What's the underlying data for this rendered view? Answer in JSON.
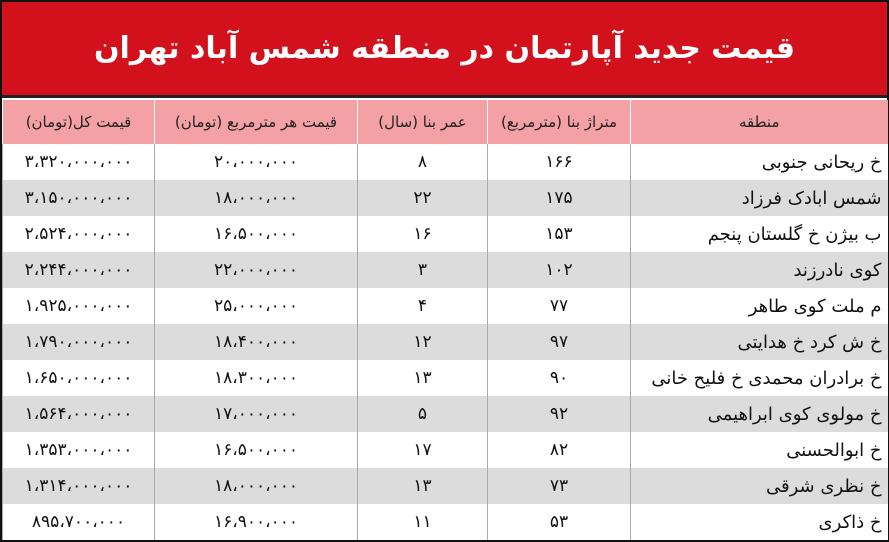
{
  "title": "قیمت جدید آپارتمان در منطقه شمس آباد تهران",
  "colors": {
    "title_bg": "#d2111c",
    "header_bg": "#f3a1a4",
    "row_alt": "#dcdcdc"
  },
  "headers": [
    "منطقه",
    "متراژ بنا (مترمربع)",
    "عمر بنا (سال)",
    "قیمت هر مترمربع (تومان)",
    "قیمت کل(تومان)"
  ],
  "rows": [
    [
      "خ ریحانی جنوبی",
      "۱۶۶",
      "۸",
      "۲۰،۰۰۰،۰۰۰",
      "۳،۳۲۰،۰۰۰،۰۰۰"
    ],
    [
      "شمس ابادک فرزاد",
      "۱۷۵",
      "۲۲",
      "۱۸،۰۰۰،۰۰۰",
      "۳،۱۵۰،۰۰۰،۰۰۰"
    ],
    [
      "ب بیژن خ گلستان پنجم",
      "۱۵۳",
      "۱۶",
      "۱۶،۵۰۰،۰۰۰",
      "۲،۵۲۴،۰۰۰،۰۰۰"
    ],
    [
      "کوی نادرزند",
      "۱۰۲",
      "۳",
      "۲۲،۰۰۰،۰۰۰",
      "۲،۲۴۴،۰۰۰،۰۰۰"
    ],
    [
      "م ملت کوی طاهر",
      "۷۷",
      "۴",
      "۲۵،۰۰۰،۰۰۰",
      "۱،۹۲۵،۰۰۰،۰۰۰"
    ],
    [
      "خ ش کرد خ هدایتی",
      "۹۷",
      "۱۲",
      "۱۸،۴۰۰،۰۰۰",
      "۱،۷۹۰،۰۰۰،۰۰۰"
    ],
    [
      "خ برادران محمدی خ فلیح خانی",
      "۹۰",
      "۱۳",
      "۱۸،۳۰۰،۰۰۰",
      "۱،۶۵۰،۰۰۰،۰۰۰"
    ],
    [
      "خ مولوی کوی ابراهیمی",
      "۹۲",
      "۵",
      "۱۷،۰۰۰،۰۰۰",
      "۱،۵۶۴،۰۰۰،۰۰۰"
    ],
    [
      "خ ابوالحسنی",
      "۸۲",
      "۱۷",
      "۱۶،۵۰۰،۰۰۰",
      "۱،۳۵۳،۰۰۰،۰۰۰"
    ],
    [
      "خ نظری شرقی",
      "۷۳",
      "۱۳",
      "۱۸،۰۰۰،۰۰۰",
      "۱،۳۱۴،۰۰۰،۰۰۰"
    ],
    [
      "خ ذاکری",
      "۵۳",
      "۱۱",
      "۱۶،۹۰۰،۰۰۰",
      "۸۹۵،۷۰۰،۰۰۰"
    ]
  ]
}
